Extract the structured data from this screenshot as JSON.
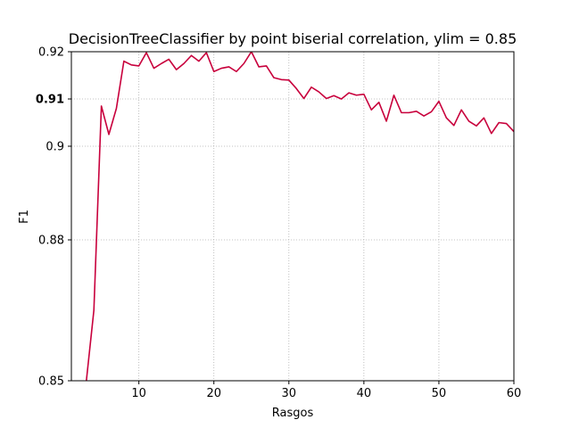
{
  "chart_data": {
    "type": "line",
    "title": "DecisionTreeClassifier by point biserial correlation, ylim = 0.85",
    "xlabel": "Rasgos",
    "ylabel": "F1",
    "xlim": [
      1,
      60
    ],
    "ylim": [
      0.85,
      0.92
    ],
    "y_scale": "nonlinear",
    "grid": true,
    "grid_style": "dotted",
    "xticks": [
      10,
      20,
      30,
      40,
      50,
      60
    ],
    "xtick_labels": [
      "10",
      "20",
      "30",
      "40",
      "50",
      "60"
    ],
    "yticks": [
      0.85,
      0.88,
      0.9,
      0.91,
      0.92
    ],
    "ytick_labels": [
      "0.85",
      "0.88",
      "0.9",
      "0.91",
      "0.92"
    ],
    "ytick_bold_label": "0.91",
    "line_color": "#c8003c",
    "series": [
      {
        "x": [
          3,
          4,
          5,
          6,
          7,
          8,
          9,
          10,
          11,
          12,
          13,
          14,
          15,
          16,
          17,
          18,
          19,
          20,
          21,
          22,
          23,
          24,
          25,
          26,
          27,
          28,
          29,
          30,
          31,
          32,
          33,
          34,
          35,
          36,
          37,
          38,
          39,
          40,
          41,
          42,
          43,
          44,
          45,
          46,
          47,
          48,
          49,
          50,
          51,
          52,
          53,
          54,
          55,
          56,
          57,
          58,
          59,
          60
        ],
        "y": [
          0.85,
          0.865,
          0.9085,
          0.9025,
          0.908,
          0.918,
          0.9172,
          0.917,
          0.9198,
          0.9165,
          0.9175,
          0.9184,
          0.9162,
          0.9175,
          0.9192,
          0.918,
          0.9198,
          0.9158,
          0.9165,
          0.9168,
          0.9158,
          0.9175,
          0.9202,
          0.9168,
          0.917,
          0.9145,
          0.9141,
          0.914,
          0.9122,
          0.9101,
          0.9125,
          0.9115,
          0.9101,
          0.9107,
          0.91,
          0.9113,
          0.9108,
          0.911,
          0.9077,
          0.9093,
          0.9053,
          0.9108,
          0.9071,
          0.9071,
          0.9074,
          0.9064,
          0.9073,
          0.9095,
          0.906,
          0.9044,
          0.9077,
          0.9053,
          0.9043,
          0.906,
          0.9027,
          0.905,
          0.9048,
          0.9031
        ]
      }
    ]
  }
}
